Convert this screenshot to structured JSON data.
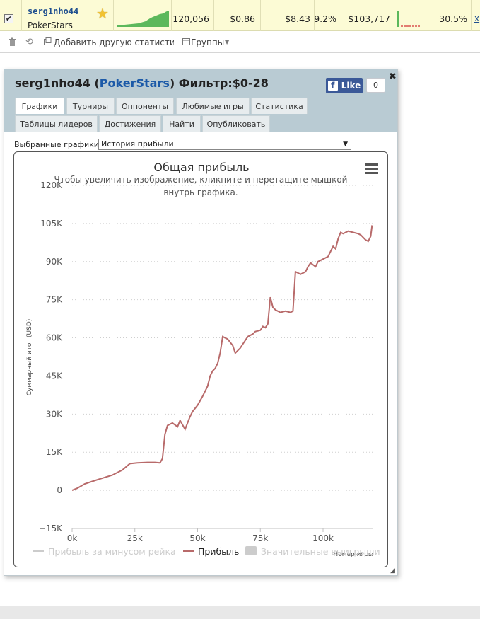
{
  "row": {
    "checkbox_mark": "✔",
    "player_name": "serg1nho44",
    "site": "PokerStars",
    "hands": "120,056",
    "val1": "$0.86",
    "val2": "$8.43",
    "pct1": "9.2%",
    "profit": "$103,717",
    "pct2": "30.5%",
    "close_link": "x"
  },
  "toolbar": {
    "add_stat": "Добавить другую статистику",
    "groups": "Группы"
  },
  "popup": {
    "title_player": "serg1nho44",
    "title_open": " (",
    "title_site": "PokerStars",
    "title_close": ")",
    "title_filter": " Фильтр:$0-28",
    "close": "✖",
    "fb_like": "Like",
    "fb_count": "0",
    "tabs_row1": [
      "Графики",
      "Турниры",
      "Оппоненты",
      "Любимые игры",
      "Статистика"
    ],
    "tabs_row2": [
      "Таблицы лидеров",
      "Достижения",
      "Найти",
      "Опубликовать"
    ],
    "select_label": "Выбранные графики:",
    "select_value": "История прибыли"
  },
  "chart_data": {
    "type": "line",
    "title": "Общая прибыль",
    "subtitle_line1": "Чтобы увеличить изображение, кликните и перетащите мышкой",
    "subtitle_line2": "внутрь графика.",
    "ylabel": "Суммарный итог (USD)",
    "xlabel": "Номер игры",
    "ylim": [
      -15000,
      120000
    ],
    "xlim": [
      0,
      120000
    ],
    "y_ticks": [
      -15000,
      0,
      15000,
      30000,
      45000,
      60000,
      75000,
      90000,
      105000,
      120000
    ],
    "y_tick_labels": [
      "−15K",
      "0",
      "15K",
      "30K",
      "45K",
      "60K",
      "75K",
      "90K",
      "105K",
      "120K"
    ],
    "x_ticks": [
      0,
      25000,
      50000,
      75000,
      100000
    ],
    "x_tick_labels": [
      "0k",
      "25k",
      "50k",
      "75k",
      "100k"
    ],
    "legend": [
      "Прибыль за минусом рейка",
      "Прибыль",
      "Значительные выигрыши"
    ],
    "series": [
      {
        "name": "Прибыль",
        "color": "#b86a6a",
        "x": [
          0,
          2000,
          5000,
          8000,
          12000,
          16000,
          20000,
          23000,
          26000,
          30000,
          33000,
          35000,
          36000,
          37000,
          38000,
          40000,
          42000,
          43000,
          45000,
          47000,
          48000,
          50000,
          52000,
          54000,
          55000,
          56000,
          57000,
          58000,
          59000,
          60000,
          62000,
          64000,
          65000,
          67000,
          68000,
          70000,
          72000,
          73000,
          75000,
          76000,
          77000,
          78000,
          79000,
          80000,
          81000,
          83000,
          85000,
          87000,
          88000,
          89000,
          90000,
          91000,
          93000,
          94000,
          95000,
          97000,
          98000,
          100000,
          102000,
          104000,
          105000,
          106000,
          107000,
          108000,
          110000,
          112000,
          114000,
          115000,
          117000,
          118000,
          119000,
          119500,
          120000
        ],
        "y": [
          0,
          800,
          2500,
          3500,
          4800,
          6000,
          8000,
          10500,
          10800,
          11000,
          11000,
          10800,
          12500,
          22000,
          25500,
          26500,
          25000,
          27500,
          24000,
          29000,
          31000,
          33500,
          37000,
          41000,
          45000,
          47000,
          48000,
          50000,
          54000,
          60500,
          59500,
          57000,
          54000,
          56000,
          57500,
          60500,
          61500,
          62500,
          63000,
          64500,
          64000,
          65500,
          76000,
          72000,
          71000,
          70000,
          70500,
          70000,
          70500,
          86000,
          85500,
          85000,
          86000,
          88000,
          89500,
          88000,
          90000,
          91000,
          92000,
          96000,
          95000,
          99000,
          101500,
          101000,
          102000,
          101500,
          101000,
          100500,
          98500,
          98000,
          100000,
          104000,
          103800
        ]
      }
    ]
  }
}
